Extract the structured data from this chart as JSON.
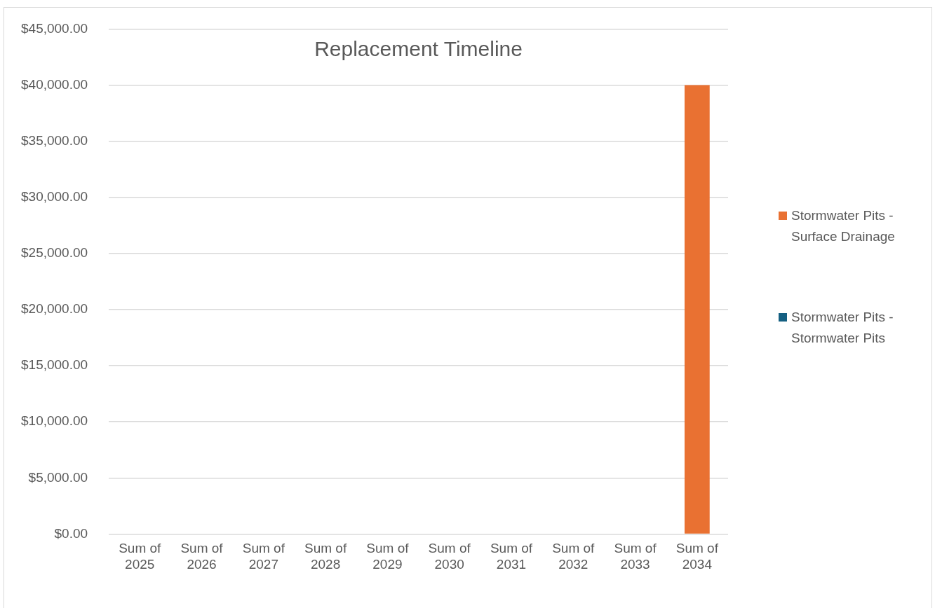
{
  "chart_data": {
    "type": "bar",
    "title": "Replacement Timeline",
    "stacked": true,
    "categories": [
      "Sum of 2025",
      "Sum of 2026",
      "Sum of 2027",
      "Sum of 2028",
      "Sum of 2029",
      "Sum of 2030",
      "Sum of 2031",
      "Sum of 2032",
      "Sum of 2033",
      "Sum of 2034"
    ],
    "series": [
      {
        "name": "Stormwater Pits - Surface Drainage",
        "color": "#e97132",
        "values": [
          0,
          0,
          0,
          0,
          0,
          0,
          0,
          0,
          0,
          40000
        ]
      },
      {
        "name": "Stormwater Pits - Stormwater Pits",
        "color": "#156082",
        "values": [
          0,
          0,
          0,
          0,
          0,
          0,
          0,
          0,
          0,
          0
        ]
      }
    ],
    "ylim": [
      0,
      45000
    ],
    "yticks": [
      {
        "value": 0,
        "label": "$0.00"
      },
      {
        "value": 5000,
        "label": "$5,000.00"
      },
      {
        "value": 10000,
        "label": "$10,000.00"
      },
      {
        "value": 15000,
        "label": "$15,000.00"
      },
      {
        "value": 20000,
        "label": "$20,000.00"
      },
      {
        "value": 25000,
        "label": "$25,000.00"
      },
      {
        "value": 30000,
        "label": "$30,000.00"
      },
      {
        "value": 35000,
        "label": "$35,000.00"
      },
      {
        "value": 40000,
        "label": "$40,000.00"
      },
      {
        "value": 45000,
        "label": "$45,000.00"
      }
    ],
    "grid": "y",
    "legend": "right"
  }
}
